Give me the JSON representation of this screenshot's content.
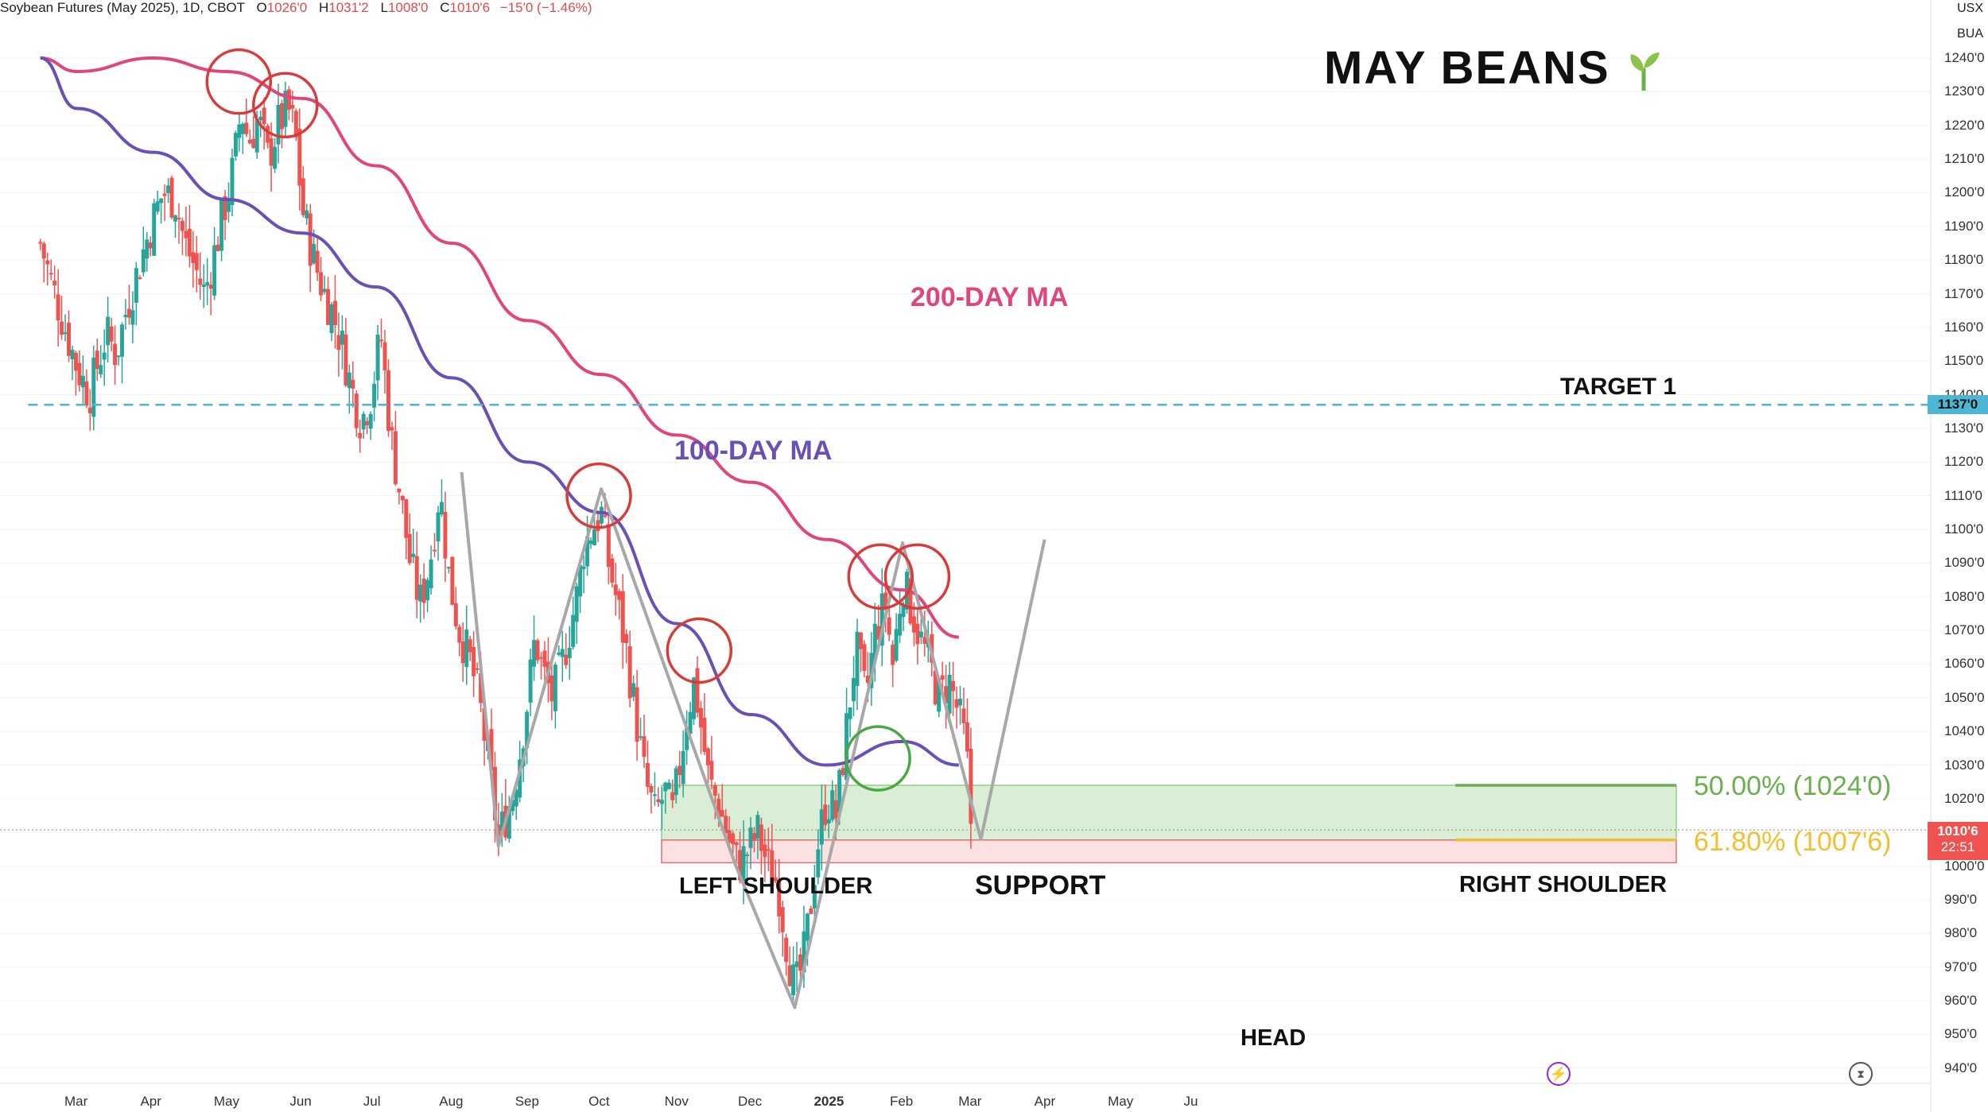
{
  "header": {
    "symbol": "Soybean Futures (May 2025), 1D, CBOT",
    "open_key": "O",
    "open": "1026'0",
    "high_key": "H",
    "high": "1031'2",
    "low_key": "L",
    "low": "1008'0",
    "close_key": "C",
    "close": "1010'6",
    "change": "−15'0 (−1.46%)"
  },
  "top_right": {
    "currency": "USX",
    "unit": "BUA"
  },
  "title": "MAY BEANS",
  "annotations": {
    "ma200": "200-DAY MA",
    "ma100": "100-DAY MA",
    "target": "TARGET 1",
    "left_shoulder": "LEFT SHOULDER",
    "support": "SUPPORT",
    "right_shoulder": "RIGHT SHOULDER",
    "head": "HEAD"
  },
  "fib": {
    "fib50": "50.00% (1024'0)",
    "fib618": "61.80% (1007'6)"
  },
  "price_badges": {
    "target_price": "1137'0",
    "last_price": "1010'6",
    "countdown": "22:51"
  },
  "colors": {
    "up": "#26a69a",
    "down": "#ef5350",
    "ma200": "#e0457b",
    "ma100": "#6a4fb5",
    "target_line": "#4db6d4",
    "fib50": "#6ab04c",
    "fib618": "#f0c030",
    "support_zone": "#d9eed4",
    "risk_zone": "#fbe1e1",
    "circle_red": "#d93a3a",
    "circle_green": "#4aa843",
    "pattern": "#a8a8a8"
  },
  "chart_data": {
    "type": "candlestick",
    "title": "Soybean Futures (May 2025), 1D, CBOT",
    "y_axis": {
      "min": 935,
      "max": 1242,
      "ticks": [
        940,
        950,
        960,
        970,
        980,
        990,
        1000,
        1010,
        1020,
        1030,
        1040,
        1050,
        1060,
        1070,
        1080,
        1090,
        1100,
        1110,
        1120,
        1130,
        1140,
        1150,
        1160,
        1170,
        1180,
        1190,
        1200,
        1210,
        1220,
        1230,
        1240
      ]
    },
    "y_tick_labels": [
      "940'0",
      "950'0",
      "960'0",
      "970'0",
      "980'0",
      "990'0",
      "1000'0",
      "1010'0",
      "1020'0",
      "1030'0",
      "1040'0",
      "1050'0",
      "1060'0",
      "1070'0",
      "1080'0",
      "1090'0",
      "1100'0",
      "1110'0",
      "1120'0",
      "1130'0",
      "1140'0",
      "1150'0",
      "1160'0",
      "1170'0",
      "1180'0",
      "1190'0",
      "1200'0",
      "1210'0",
      "1220'0",
      "1230'0",
      "1240'0"
    ],
    "x_tick_labels": [
      "Mar",
      "Apr",
      "May",
      "Jun",
      "Jul",
      "Aug",
      "Sep",
      "Oct",
      "Nov",
      "Dec",
      "2025",
      "Feb",
      "Mar",
      "Apr",
      "May",
      "Ju"
    ],
    "x_tick_days": [
      0,
      31,
      61,
      92,
      122,
      153,
      184,
      214,
      245,
      275,
      306,
      337,
      365,
      396,
      426,
      457
    ],
    "price_path": [
      [
        -15,
        1185
      ],
      [
        -10,
        1172
      ],
      [
        -5,
        1160
      ],
      [
        0,
        1148
      ],
      [
        5,
        1140
      ],
      [
        8,
        1148
      ],
      [
        12,
        1158
      ],
      [
        16,
        1152
      ],
      [
        20,
        1165
      ],
      [
        24,
        1175
      ],
      [
        28,
        1185
      ],
      [
        31,
        1192
      ],
      [
        35,
        1200
      ],
      [
        40,
        1198
      ],
      [
        44,
        1185
      ],
      [
        48,
        1178
      ],
      [
        52,
        1170
      ],
      [
        56,
        1182
      ],
      [
        60,
        1195
      ],
      [
        64,
        1208
      ],
      [
        67,
        1225
      ],
      [
        70,
        1215
      ],
      [
        74,
        1222
      ],
      [
        78,
        1210
      ],
      [
        82,
        1220
      ],
      [
        86,
        1225
      ],
      [
        89,
        1218
      ],
      [
        92,
        1195
      ],
      [
        96,
        1182
      ],
      [
        100,
        1172
      ],
      [
        104,
        1165
      ],
      [
        108,
        1155
      ],
      [
        112,
        1142
      ],
      [
        116,
        1132
      ],
      [
        120,
        1140
      ],
      [
        124,
        1158
      ],
      [
        128,
        1128
      ],
      [
        132,
        1110
      ],
      [
        136,
        1090
      ],
      [
        140,
        1078
      ],
      [
        144,
        1090
      ],
      [
        148,
        1112
      ],
      [
        152,
        1085
      ],
      [
        156,
        1070
      ],
      [
        160,
        1062
      ],
      [
        164,
        1050
      ],
      [
        168,
        1030
      ],
      [
        172,
        1008
      ],
      [
        175,
        1015
      ],
      [
        178,
        1022
      ],
      [
        181,
        1035
      ],
      [
        184,
        1050
      ],
      [
        187,
        1068
      ],
      [
        190,
        1058
      ],
      [
        194,
        1050
      ],
      [
        198,
        1060
      ],
      [
        201,
        1070
      ],
      [
        204,
        1080
      ],
      [
        207,
        1095
      ],
      [
        210,
        1100
      ],
      [
        214,
        1105
      ],
      [
        217,
        1090
      ],
      [
        220,
        1080
      ],
      [
        224,
        1065
      ],
      [
        228,
        1045
      ],
      [
        232,
        1025
      ],
      [
        236,
        1015
      ],
      [
        240,
        1022
      ],
      [
        243,
        1015
      ],
      [
        246,
        1030
      ],
      [
        249,
        1045
      ],
      [
        252,
        1055
      ],
      [
        255,
        1040
      ],
      [
        258,
        1025
      ],
      [
        262,
        1018
      ],
      [
        266,
        1008
      ],
      [
        270,
        1000
      ],
      [
        274,
        1005
      ],
      [
        278,
        1010
      ],
      [
        282,
        1000
      ],
      [
        286,
        995
      ],
      [
        290,
        975
      ],
      [
        293,
        963
      ],
      [
        296,
        970
      ],
      [
        299,
        985
      ],
      [
        302,
        1005
      ],
      [
        306,
        1020
      ],
      [
        310,
        1015
      ],
      [
        314,
        1040
      ],
      [
        318,
        1065
      ],
      [
        322,
        1050
      ],
      [
        326,
        1070
      ],
      [
        330,
        1078
      ],
      [
        333,
        1060
      ],
      [
        337,
        1085
      ],
      [
        340,
        1078
      ],
      [
        344,
        1068
      ],
      [
        348,
        1060
      ],
      [
        352,
        1050
      ],
      [
        356,
        1055
      ],
      [
        360,
        1045
      ],
      [
        363,
        1035
      ],
      [
        365,
        1012
      ]
    ],
    "series": [
      {
        "name": "200-DAY MA",
        "points": [
          [
            -15,
            1240
          ],
          [
            0,
            1236
          ],
          [
            31,
            1240
          ],
          [
            61,
            1236
          ],
          [
            92,
            1228
          ],
          [
            122,
            1208
          ],
          [
            153,
            1185
          ],
          [
            184,
            1162
          ],
          [
            214,
            1146
          ],
          [
            245,
            1128
          ],
          [
            275,
            1114
          ],
          [
            306,
            1097
          ],
          [
            337,
            1082
          ],
          [
            360,
            1068
          ]
        ]
      },
      {
        "name": "100-DAY MA",
        "points": [
          [
            -15,
            1240
          ],
          [
            0,
            1225
          ],
          [
            31,
            1212
          ],
          [
            61,
            1198
          ],
          [
            92,
            1188
          ],
          [
            122,
            1172
          ],
          [
            153,
            1145
          ],
          [
            184,
            1120
          ],
          [
            214,
            1105
          ],
          [
            245,
            1072
          ],
          [
            275,
            1045
          ],
          [
            306,
            1030
          ],
          [
            337,
            1037
          ],
          [
            360,
            1030
          ]
        ]
      }
    ],
    "levels": [
      {
        "label": "TARGET 1",
        "value": 1137
      },
      {
        "label": "50.00% (1024'0)",
        "value": 1024
      },
      {
        "label": "61.80% (1007'6)",
        "value": 1007.75
      },
      {
        "label": "last",
        "value": 1010.75
      }
    ],
    "support_zone": [
      1007.75,
      1024
    ],
    "risk_zone": [
      1001,
      1007.75
    ],
    "head_and_shoulders": [
      [
        157,
        1117
      ],
      [
        172,
        1006
      ],
      [
        214,
        1112
      ],
      [
        269,
        1000
      ],
      [
        293,
        958
      ],
      [
        337,
        1096
      ],
      [
        369,
        1008
      ],
      [
        395,
        1097
      ]
    ],
    "circles": [
      {
        "color": "red",
        "x": 66,
        "y": 1233
      },
      {
        "color": "red",
        "x": 85,
        "y": 1226
      },
      {
        "color": "red",
        "x": 213,
        "y": 1110
      },
      {
        "color": "red",
        "x": 254,
        "y": 1064
      },
      {
        "color": "red",
        "x": 328,
        "y": 1086
      },
      {
        "color": "red",
        "x": 343,
        "y": 1086
      },
      {
        "color": "green",
        "x": 327,
        "y": 1032
      }
    ]
  }
}
